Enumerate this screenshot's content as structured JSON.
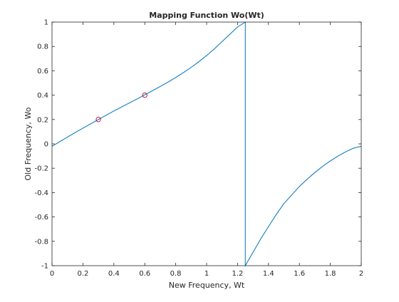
{
  "chart_data": {
    "type": "line",
    "title": "Mapping Function Wo(Wt)",
    "xlabel": "New Frequency, Wt",
    "ylabel": "Old Frequency, Wo",
    "xlim": [
      0,
      2
    ],
    "ylim": [
      -1,
      1
    ],
    "xticks": [
      0,
      0.2,
      0.4,
      0.6,
      0.8,
      1,
      1.2,
      1.4,
      1.6,
      1.8,
      2
    ],
    "xtick_labels": [
      "0",
      "0.2",
      "0.4",
      "0.6",
      "0.8",
      "1",
      "1.2",
      "1.4",
      "1.6",
      "1.8",
      "2"
    ],
    "yticks": [
      -1,
      -0.8,
      -0.6,
      -0.4,
      -0.2,
      0,
      0.2,
      0.4,
      0.6,
      0.8,
      1
    ],
    "ytick_labels": [
      "-1",
      "-0.8",
      "-0.6",
      "-0.4",
      "-0.2",
      "0",
      "0.2",
      "0.4",
      "0.6",
      "0.8",
      "1"
    ],
    "grid": false,
    "series": [
      {
        "line_color": "#0072bd",
        "x": [
          0,
          0.05,
          0.1,
          0.15,
          0.2,
          0.25,
          0.3,
          0.35,
          0.4,
          0.45,
          0.5,
          0.55,
          0.6,
          0.65,
          0.7,
          0.75,
          0.8,
          0.85,
          0.9,
          0.95,
          1.0,
          1.05,
          1.1,
          1.15,
          1.2,
          1.25,
          1.25,
          1.3,
          1.35,
          1.4,
          1.45,
          1.5,
          1.55,
          1.6,
          1.65,
          1.7,
          1.75,
          1.8,
          1.85,
          1.9,
          1.95,
          2.0
        ],
        "y": [
          -0.02,
          0.018,
          0.056,
          0.093,
          0.129,
          0.165,
          0.2,
          0.235,
          0.27,
          0.303,
          0.336,
          0.369,
          0.403,
          0.437,
          0.471,
          0.507,
          0.545,
          0.585,
          0.628,
          0.675,
          0.725,
          0.78,
          0.84,
          0.9,
          0.96,
          1.0,
          -1.0,
          -0.89,
          -0.78,
          -0.68,
          -0.58,
          -0.49,
          -0.42,
          -0.35,
          -0.29,
          -0.235,
          -0.185,
          -0.14,
          -0.1,
          -0.065,
          -0.035,
          -0.02
        ]
      }
    ],
    "markers": {
      "style": "circle",
      "color": "#c0002a",
      "x": [
        0.3,
        0.6
      ],
      "y": [
        0.2,
        0.4
      ]
    }
  }
}
